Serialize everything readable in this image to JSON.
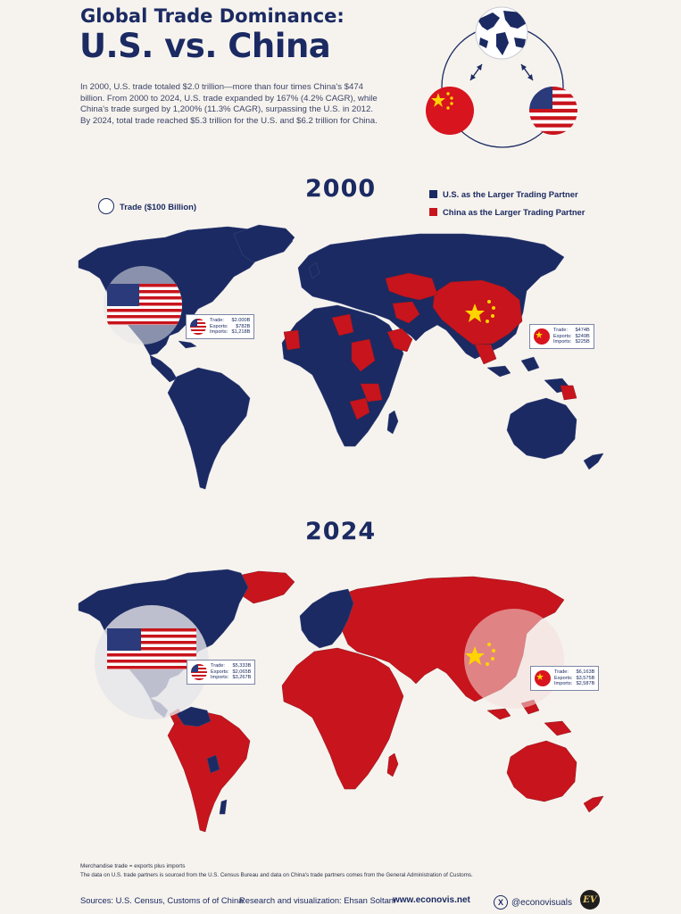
{
  "title_line1": "Global Trade Dominance:",
  "title_line2": "U.S. vs. China",
  "intro": "In 2000, U.S. trade totaled $2.0 trillion—more than four times China's $474 billion. From 2000 to 2024, U.S. trade expanded by 167% (4.2% CAGR), while China's trade surged by 1,200% (11.3% CAGR), surpassing the U.S. in 2012. By 2024, total trade reached $5.3 trillion for the U.S. and $6.2 trillion for China.",
  "legend": {
    "us": "U.S. as the Larger Trading Partner",
    "china": "China as the Larger Trading Partner",
    "trade_size": "Trade ($100 Billion)"
  },
  "colors": {
    "us": "#1b2a62",
    "china": "#c8141c",
    "background": "#f6f3ee"
  },
  "maps": {
    "y2000": {
      "year": "2000",
      "us_box": {
        "trade_k": "Trade:",
        "trade_v": "$2.000B",
        "exports_k": "Exports:",
        "exports_v": "$782B",
        "imports_k": "Imports:",
        "imports_v": "$1,218B"
      },
      "cn_box": {
        "trade_k": "Trade:",
        "trade_v": "$474B",
        "exports_k": "Exports:",
        "exports_v": "$249B",
        "imports_k": "Imports:",
        "imports_v": "$225B"
      }
    },
    "y2024": {
      "year": "2024",
      "us_box": {
        "trade_k": "Trade:",
        "trade_v": "$5,333B",
        "exports_k": "Exports:",
        "exports_v": "$2,065B",
        "imports_k": "Imports:",
        "imports_v": "$3,267B"
      },
      "cn_box": {
        "trade_k": "Trade:",
        "trade_v": "$6,163B",
        "exports_k": "Exports:",
        "exports_v": "$3,575B",
        "imports_k": "Imports:",
        "imports_v": "$2,587B"
      }
    }
  },
  "footer": {
    "note1": "Merchandise trade = exports plus imports",
    "note2": "The data on U.S. trade partners is sourced from the U.S. Census Bureau and data on China's trade partners comes from the General Administration of Customs.",
    "sources": "Sources: U.S. Census, Customs of of China",
    "research": "Research and visualization: Ehsan Soltani",
    "website": "www.econovis.net",
    "handle": "@econovisuals",
    "logo": "EV"
  },
  "icons": {
    "globe": "globe-icon",
    "china_flag": "china-flag-icon",
    "us_flag": "us-flag-icon",
    "x": "x-logo-icon"
  }
}
